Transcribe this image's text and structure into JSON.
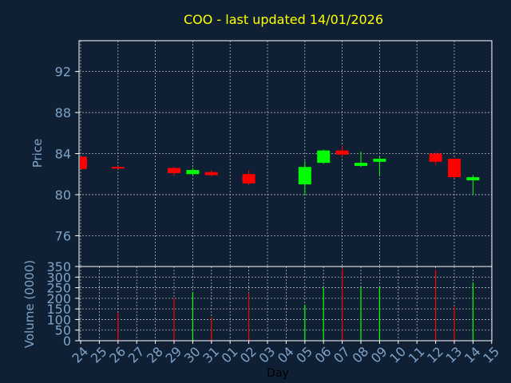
{
  "chart_data": {
    "type": "candlestick",
    "title": "COO - last updated 14/01/2026",
    "xlabel": "Day",
    "price_panel": {
      "ylabel": "Price",
      "ylim": [
        73,
        95
      ],
      "yticks": [
        76,
        80,
        84,
        88,
        92
      ]
    },
    "volume_panel": {
      "ylabel": "Volume (0000)",
      "ylim": [
        0,
        350
      ],
      "yticks": [
        0,
        50,
        100,
        150,
        200,
        250,
        300,
        350
      ]
    },
    "x_tick_labels": [
      "24",
      "25",
      "26",
      "27",
      "28",
      "29",
      "30",
      "31",
      "01",
      "02",
      "03",
      "04",
      "05",
      "06",
      "07",
      "08",
      "09",
      "10",
      "11",
      "12",
      "13",
      "14",
      "15"
    ],
    "grid": true,
    "colors": {
      "background": "#0f2034",
      "title": "#ffff00",
      "axis_text": "#7fa3c8",
      "grid": "#b8b8b8",
      "up": "#00ff00",
      "down": "#ff0000"
    },
    "candles": [
      {
        "day": "24",
        "open": 83.7,
        "high": 83.7,
        "low": 82.5,
        "close": 82.5,
        "volume": 0
      },
      {
        "day": "26",
        "open": 82.7,
        "high": 82.8,
        "low": 82.5,
        "close": 82.6,
        "volume": 130
      },
      {
        "day": "29",
        "open": 82.6,
        "high": 82.7,
        "low": 81.8,
        "close": 82.1,
        "volume": 200
      },
      {
        "day": "30",
        "open": 82.0,
        "high": 82.6,
        "low": 81.9,
        "close": 82.4,
        "volume": 230
      },
      {
        "day": "31",
        "open": 82.2,
        "high": 82.4,
        "low": 81.8,
        "close": 81.9,
        "volume": 110
      },
      {
        "day": "02",
        "open": 82.0,
        "high": 82.4,
        "low": 80.9,
        "close": 81.1,
        "volume": 225
      },
      {
        "day": "05",
        "open": 81.0,
        "high": 83.3,
        "low": 80.0,
        "close": 82.7,
        "volume": 170
      },
      {
        "day": "06",
        "open": 83.1,
        "high": 84.4,
        "low": 83.0,
        "close": 84.3,
        "volume": 250
      },
      {
        "day": "07",
        "open": 84.3,
        "high": 84.8,
        "low": 83.7,
        "close": 83.9,
        "volume": 340
      },
      {
        "day": "08",
        "open": 82.8,
        "high": 84.2,
        "low": 82.7,
        "close": 83.1,
        "volume": 255
      },
      {
        "day": "09",
        "open": 83.2,
        "high": 83.7,
        "low": 81.9,
        "close": 83.5,
        "volume": 255
      },
      {
        "day": "12",
        "open": 84.0,
        "high": 84.1,
        "low": 82.9,
        "close": 83.2,
        "volume": 335
      },
      {
        "day": "13",
        "open": 83.5,
        "high": 83.5,
        "low": 81.6,
        "close": 81.7,
        "volume": 160
      },
      {
        "day": "14",
        "open": 81.4,
        "high": 81.9,
        "low": 80.0,
        "close": 81.7,
        "volume": 275
      }
    ]
  }
}
